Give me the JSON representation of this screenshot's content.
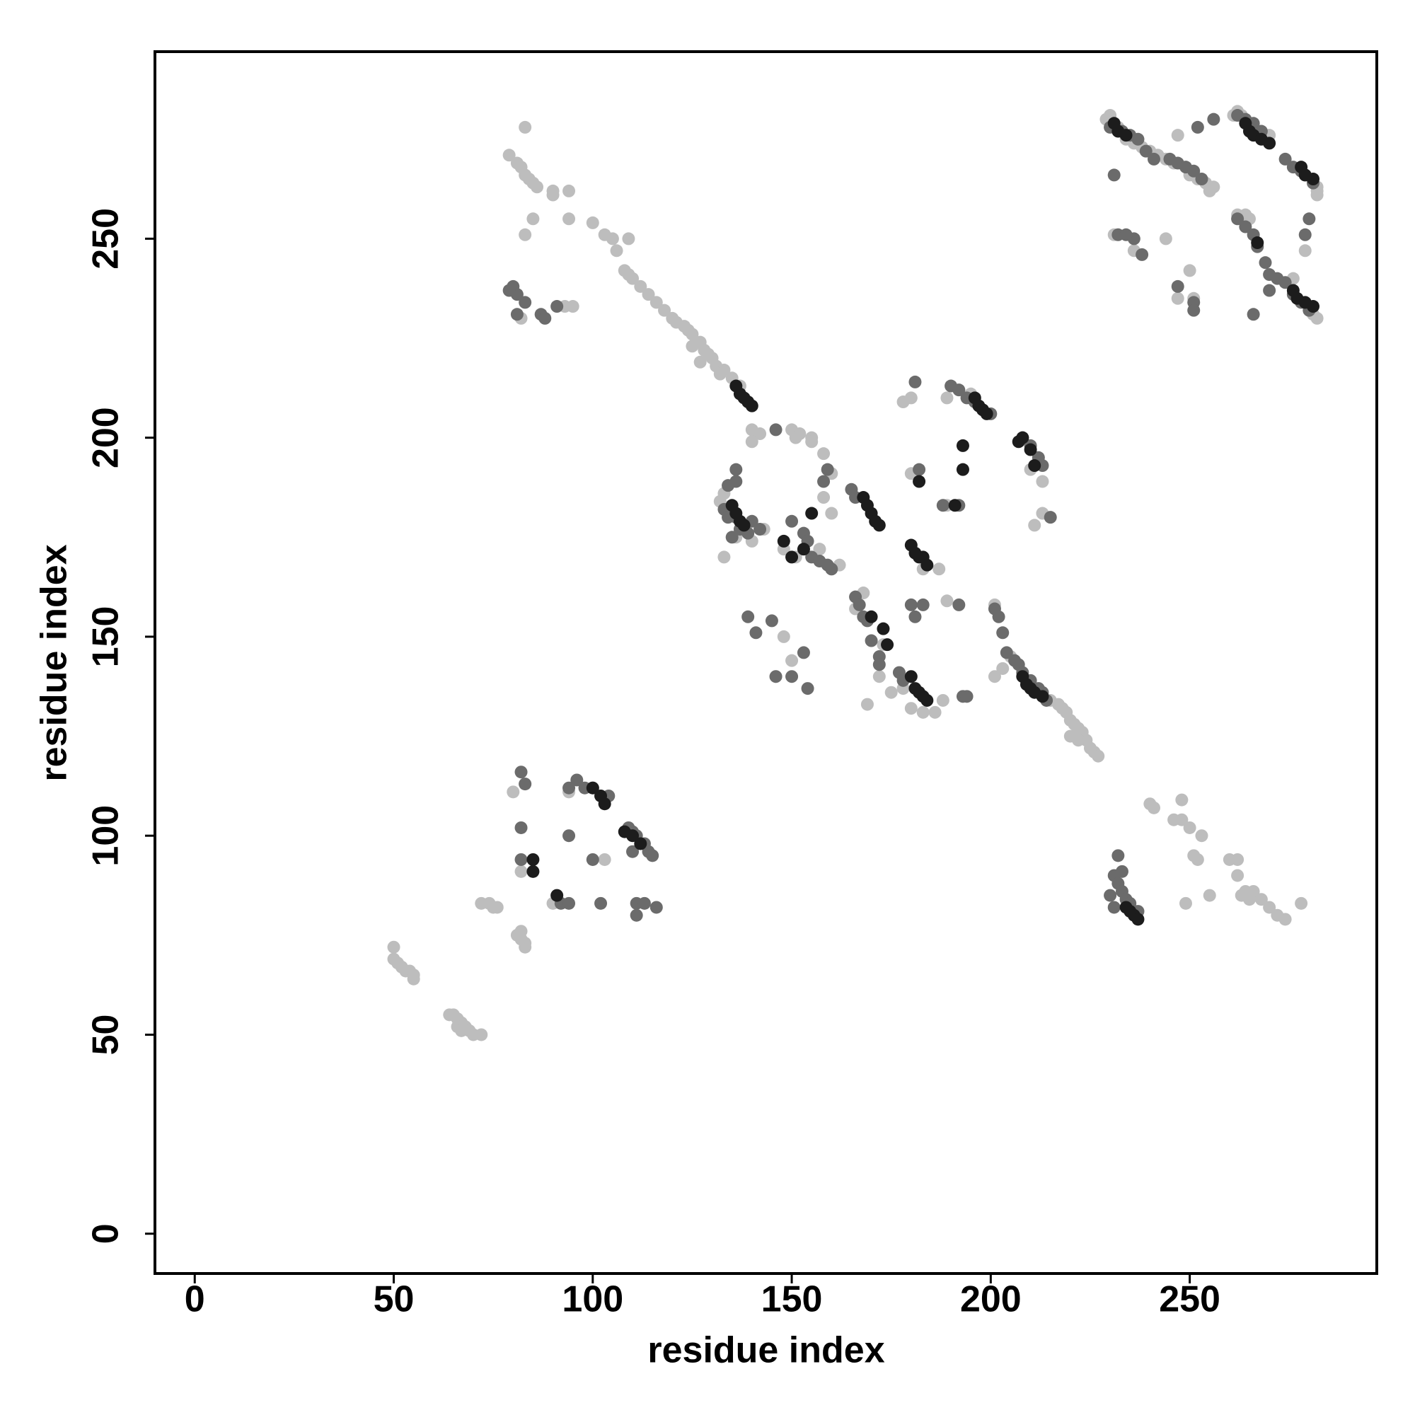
{
  "chart_data": {
    "type": "scatter",
    "x_label": "residue index",
    "y_label": "residue index",
    "xlim": [
      -10,
      297
    ],
    "ylim": [
      -10,
      297
    ],
    "xticks": [
      0,
      50,
      100,
      150,
      200,
      250
    ],
    "yticks": [
      0,
      50,
      100,
      150,
      200,
      250
    ],
    "series": [
      {
        "color": "#bdbdbd",
        "x": [
          50,
          50,
          51,
          52,
          53,
          54,
          55,
          55,
          64,
          65,
          66,
          67,
          68,
          69,
          70,
          72,
          66,
          67,
          72,
          74,
          75,
          76,
          81,
          82,
          83,
          83,
          82,
          80,
          83,
          82,
          90,
          94,
          103,
          79,
          81,
          82,
          83,
          84,
          85,
          86,
          90,
          90,
          94,
          94,
          83,
          85,
          83,
          100,
          103,
          105,
          109,
          106,
          108,
          109,
          110,
          112,
          114,
          116,
          118,
          120,
          121,
          123,
          124,
          125,
          127,
          128,
          129,
          130,
          131,
          133,
          135,
          137,
          125,
          127,
          132,
          82,
          95,
          93,
          140,
          142,
          150,
          152,
          155,
          158,
          160,
          158,
          160,
          140,
          143,
          140,
          136,
          133,
          133,
          132,
          138,
          148,
          151,
          160,
          162,
          148,
          150,
          146,
          169,
          168,
          166,
          173,
          172,
          175,
          178,
          180,
          183,
          186,
          188,
          180,
          183,
          187,
          189,
          189,
          178,
          180,
          189,
          195,
          213,
          211,
          213,
          210,
          201,
          203,
          205,
          201,
          215,
          217,
          218,
          219,
          220,
          221,
          222,
          223,
          224,
          225,
          226,
          227,
          220,
          222,
          240,
          241,
          246,
          248,
          248,
          250,
          253,
          251,
          252,
          249,
          255,
          260,
          262,
          262,
          264,
          266,
          268,
          270,
          272,
          274,
          278,
          263,
          265,
          229,
          230,
          231,
          232,
          234,
          236,
          238,
          240,
          242,
          244,
          246,
          250,
          252,
          254,
          255,
          256,
          247,
          261,
          262,
          263,
          270,
          281,
          282,
          282,
          282,
          279,
          262,
          264,
          265,
          276,
          280,
          281,
          282,
          250,
          247,
          251,
          236,
          231,
          244,
          157,
          151,
          155
        ],
        "y": [
          72,
          69,
          68,
          67,
          66,
          66,
          65,
          64,
          55,
          55,
          54,
          53,
          52,
          51,
          50,
          50,
          52,
          51,
          83,
          83,
          82,
          82,
          75,
          74,
          73,
          72,
          76,
          111,
          113,
          91,
          83,
          111,
          94,
          271,
          269,
          268,
          266,
          265,
          264,
          263,
          262,
          261,
          262,
          255,
          278,
          255,
          251,
          254,
          251,
          250,
          250,
          247,
          242,
          241,
          240,
          238,
          236,
          234,
          232,
          230,
          229,
          228,
          227,
          226,
          224,
          222,
          221,
          220,
          218,
          217,
          215,
          213,
          223,
          219,
          216,
          230,
          233,
          233,
          202,
          201,
          202,
          201,
          200,
          196,
          191,
          185,
          181,
          199,
          177,
          174,
          175,
          170,
          186,
          184,
          178,
          172,
          170,
          167,
          168,
          150,
          144,
          140,
          133,
          161,
          157,
          148,
          140,
          136,
          137,
          132,
          131,
          131,
          134,
          191,
          167,
          167,
          159,
          183,
          209,
          210,
          210,
          211,
          189,
          178,
          181,
          192,
          140,
          142,
          145,
          158,
          134,
          133,
          132,
          131,
          129,
          128,
          127,
          126,
          124,
          122,
          121,
          120,
          125,
          124,
          108,
          107,
          104,
          104,
          109,
          102,
          100,
          95,
          94,
          83,
          85,
          94,
          94,
          90,
          86,
          86,
          84,
          82,
          80,
          79,
          83,
          85,
          84,
          280,
          281,
          279,
          278,
          275,
          274,
          273,
          272,
          271,
          270,
          269,
          266,
          265,
          264,
          262,
          263,
          276,
          281,
          282,
          281,
          276,
          265,
          263,
          262,
          261,
          247,
          256,
          256,
          255,
          240,
          232,
          231,
          230,
          242,
          235,
          235,
          247,
          251,
          250,
          172,
          200,
          199
        ]
      },
      {
        "color": "#6b6b6b",
        "x": [
          80,
          81,
          83,
          87,
          88,
          91,
          79,
          81,
          82,
          83,
          82,
          82,
          92,
          94,
          102,
          111,
          111,
          113,
          116,
          94,
          96,
          98,
          100,
          104,
          109,
          110,
          111,
          113,
          114,
          115,
          110,
          94,
          100,
          134,
          136,
          136,
          133,
          134,
          136,
          137,
          139,
          140,
          142,
          139,
          141,
          145,
          146,
          150,
          153,
          154,
          135,
          146,
          150,
          153,
          154,
          155,
          157,
          159,
          160,
          158,
          159,
          165,
          166,
          166,
          167,
          168,
          169,
          170,
          172,
          172,
          177,
          178,
          180,
          181,
          183,
          182,
          190,
          192,
          194,
          196,
          198,
          200,
          188,
          192,
          181,
          192,
          193,
          194,
          201,
          202,
          203,
          204,
          206,
          207,
          208,
          210,
          212,
          213,
          214,
          208,
          210,
          212,
          213,
          215,
          231,
          232,
          233,
          234,
          235,
          236,
          237,
          232,
          233,
          230,
          231,
          230,
          233,
          235,
          237,
          239,
          241,
          245,
          247,
          249,
          251,
          253,
          252,
          256,
          231,
          236,
          232,
          234,
          238,
          247,
          251,
          251,
          262,
          264,
          266,
          267,
          269,
          270,
          270,
          272,
          274,
          276,
          278,
          280,
          266,
          262,
          264,
          266,
          268,
          274,
          276,
          278,
          279,
          281,
          280,
          279
        ],
        "y": [
          238,
          236,
          234,
          231,
          230,
          233,
          237,
          231,
          116,
          113,
          102,
          94,
          83,
          83,
          83,
          83,
          80,
          83,
          82,
          112,
          114,
          112,
          112,
          110,
          102,
          101,
          100,
          98,
          96,
          95,
          96,
          100,
          94,
          188,
          192,
          189,
          182,
          180,
          180,
          177,
          176,
          179,
          177,
          155,
          151,
          154,
          140,
          140,
          146,
          137,
          175,
          202,
          179,
          176,
          174,
          170,
          169,
          168,
          167,
          189,
          192,
          187,
          185,
          160,
          158,
          155,
          154,
          149,
          145,
          143,
          141,
          139,
          158,
          155,
          158,
          192,
          213,
          212,
          210,
          209,
          207,
          206,
          183,
          183,
          214,
          158,
          135,
          135,
          157,
          155,
          151,
          146,
          144,
          143,
          141,
          139,
          137,
          136,
          134,
          200,
          198,
          195,
          193,
          180,
          90,
          88,
          86,
          84,
          83,
          81,
          81,
          95,
          91,
          85,
          82,
          278,
          277,
          276,
          275,
          272,
          270,
          270,
          269,
          268,
          267,
          265,
          278,
          280,
          266,
          250,
          251,
          251,
          246,
          238,
          234,
          232,
          255,
          253,
          251,
          248,
          244,
          241,
          237,
          240,
          239,
          236,
          234,
          232,
          231,
          281,
          280,
          279,
          277,
          270,
          268,
          267,
          266,
          264,
          255,
          251
        ]
      },
      {
        "color": "#1c1c1c",
        "x": [
          85,
          85,
          91,
          100,
          102,
          103,
          108,
          110,
          112,
          136,
          137,
          138,
          139,
          140,
          135,
          136,
          137,
          138,
          148,
          150,
          153,
          155,
          168,
          169,
          170,
          171,
          172,
          173,
          174,
          170,
          180,
          181,
          182,
          183,
          184,
          182,
          180,
          181,
          182,
          183,
          184,
          191,
          193,
          193,
          196,
          197,
          198,
          199,
          207,
          208,
          210,
          211,
          208,
          209,
          210,
          211,
          213,
          234,
          235,
          236,
          237,
          231,
          232,
          234,
          264,
          265,
          266,
          268,
          270,
          278,
          279,
          281,
          267,
          276,
          277,
          279,
          281
        ],
        "y": [
          94,
          91,
          85,
          112,
          110,
          108,
          101,
          100,
          98,
          213,
          211,
          210,
          209,
          208,
          183,
          181,
          179,
          178,
          174,
          170,
          172,
          181,
          185,
          183,
          181,
          179,
          178,
          152,
          148,
          155,
          173,
          171,
          170,
          170,
          168,
          189,
          140,
          137,
          136,
          135,
          134,
          183,
          198,
          192,
          210,
          208,
          207,
          206,
          199,
          200,
          197,
          193,
          140,
          138,
          137,
          136,
          135,
          82,
          81,
          80,
          79,
          279,
          277,
          276,
          279,
          277,
          276,
          275,
          274,
          268,
          266,
          265,
          249,
          237,
          235,
          234,
          233
        ]
      }
    ]
  }
}
